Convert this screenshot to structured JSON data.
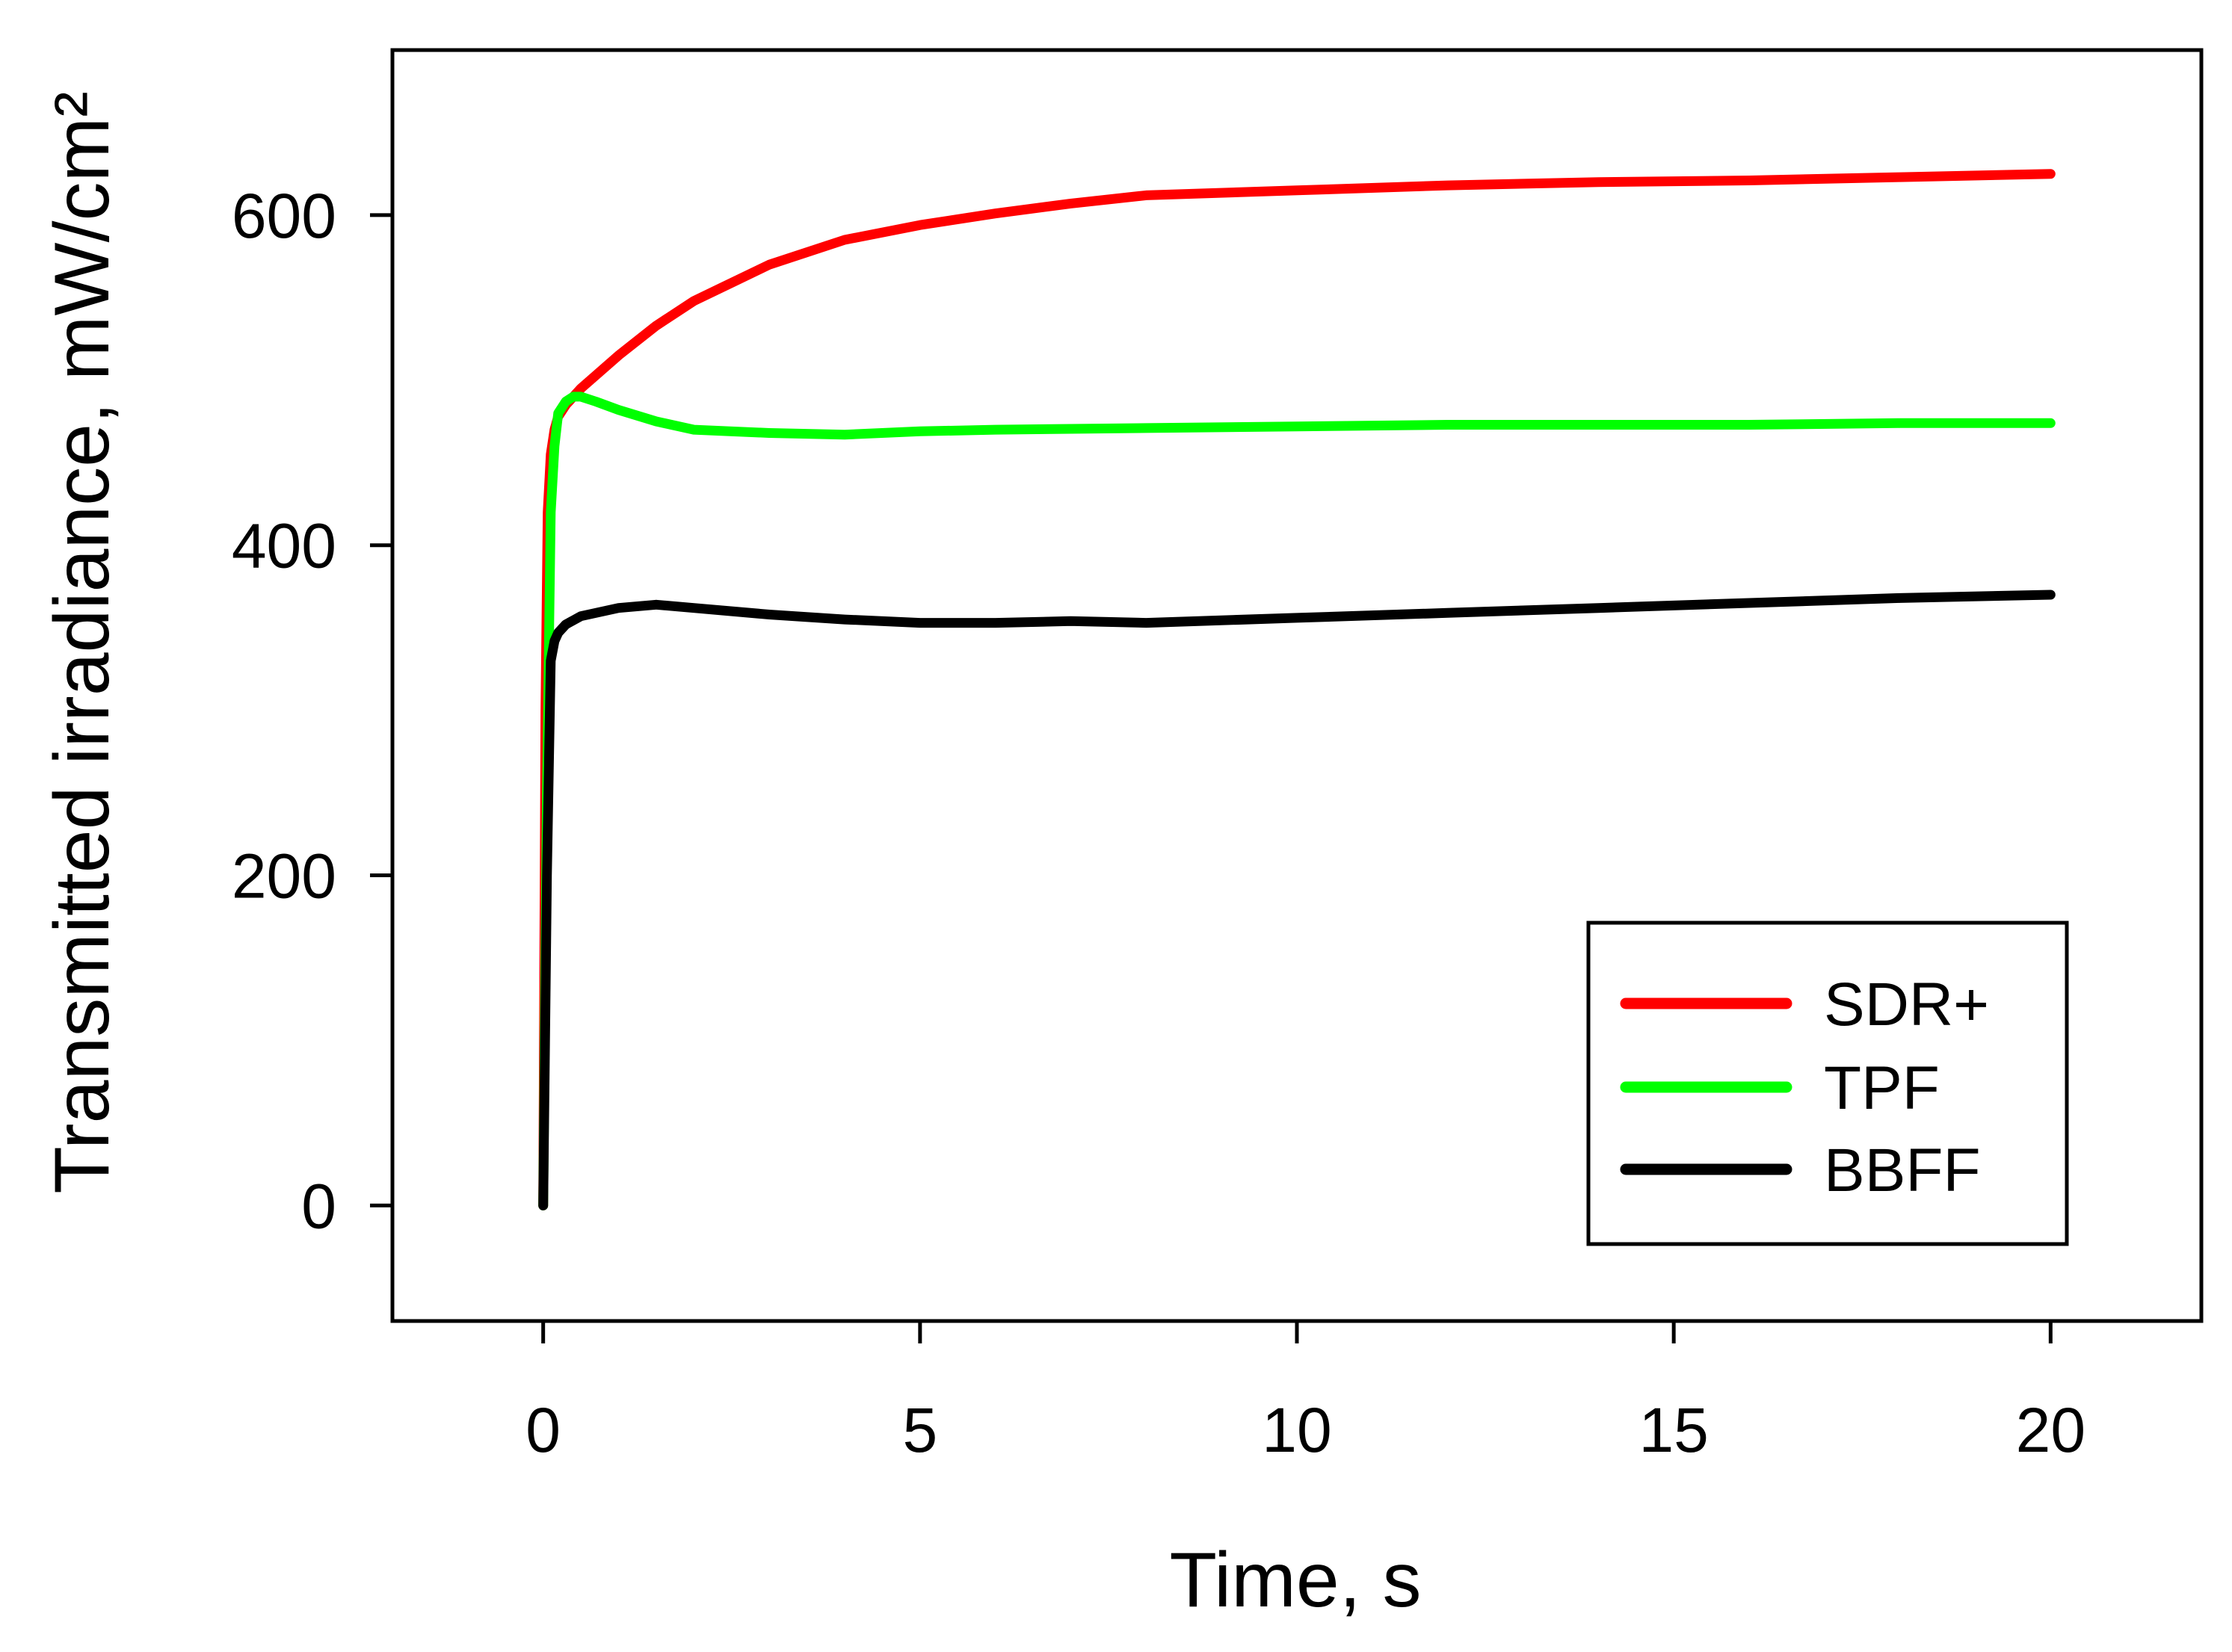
{
  "chart_data": {
    "type": "line",
    "xlabel": "Time, s",
    "ylabel": "Transmitted irradiance, mW/cm²",
    "xlim": [
      -2,
      22
    ],
    "ylim": [
      -70,
      700
    ],
    "xticks": [
      0,
      5,
      10,
      15,
      20
    ],
    "yticks": [
      0,
      200,
      400,
      600
    ],
    "grid": false,
    "legend_position": "bottom-right",
    "series": [
      {
        "name": "SDR+",
        "color": "#ff0000",
        "x": [
          0,
          0.03,
          0.06,
          0.1,
          0.15,
          0.2,
          0.3,
          0.5,
          1,
          1.5,
          2,
          3,
          4,
          5,
          6,
          7,
          8,
          10,
          12,
          14,
          16,
          18,
          20
        ],
        "y": [
          0,
          300,
          420,
          455,
          470,
          478,
          485,
          495,
          515,
          533,
          548,
          570,
          585,
          594,
          601,
          607,
          612,
          615,
          618,
          620,
          621,
          623,
          625
        ]
      },
      {
        "name": "TPF",
        "color": "#00ff00",
        "x": [
          0,
          0.05,
          0.1,
          0.15,
          0.2,
          0.3,
          0.4,
          0.5,
          0.7,
          1,
          1.5,
          2,
          3,
          4,
          5,
          6,
          8,
          10,
          12,
          14,
          16,
          18,
          20
        ],
        "y": [
          0,
          250,
          420,
          460,
          480,
          487,
          490,
          490,
          487,
          482,
          475,
          470,
          468,
          467,
          469,
          470,
          471,
          472,
          473,
          473,
          473,
          474,
          474
        ]
      },
      {
        "name": "BBFF",
        "color": "#000000",
        "x": [
          0,
          0.05,
          0.1,
          0.15,
          0.2,
          0.3,
          0.5,
          1,
          1.5,
          2,
          3,
          4,
          5,
          6,
          7,
          8,
          10,
          12,
          14,
          16,
          18,
          20
        ],
        "y": [
          0,
          200,
          330,
          342,
          347,
          352,
          357,
          362,
          364,
          362,
          358,
          355,
          353,
          353,
          354,
          353,
          356,
          359,
          362,
          365,
          368,
          370
        ]
      }
    ]
  }
}
